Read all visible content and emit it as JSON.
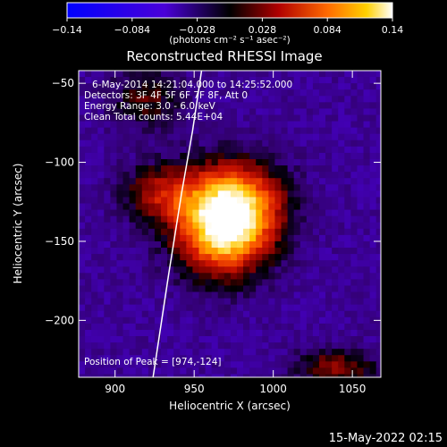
{
  "chart_data": {
    "type": "heatmap",
    "title": "Reconstructed RHESSI Image",
    "xlabel": "Heliocentric X (arcsec)",
    "ylabel": "Heliocentric Y (arcsec)",
    "xlim": [
      877,
      1068
    ],
    "ylim": [
      -236,
      -42
    ],
    "x_ticks": [
      900,
      950,
      1000,
      1050
    ],
    "y_ticks": [
      -50,
      -100,
      -150,
      -200
    ],
    "colorbar": {
      "range": [
        -0.14,
        0.14
      ],
      "ticks": [
        "-0.14",
        "-0.084",
        "-0.028",
        "0.028",
        "0.084",
        "0.14"
      ],
      "label": "(photons cm⁻² s⁻¹ asec⁻²)"
    },
    "info_lines": [
      "6-May-2014 14:21:04.000 to 14:25:52.000",
      "Detectors: 3F 4F 5F 6F 7F 8F, Att 0",
      "Energy Range: 3.0 - 6.0 keV",
      "Clean     Total counts: 5.44E+04"
    ],
    "peak_label": "Position of Peak = [974,-124]",
    "peak_position": [
      974,
      -124
    ],
    "sources": [
      {
        "x": 975,
        "y": -126,
        "sx": 30,
        "sy": 26,
        "amp": 0.14
      },
      {
        "x": 968,
        "y": -148,
        "sx": 28,
        "sy": 26,
        "amp": 0.12
      },
      {
        "x": 930,
        "y": -120,
        "sx": 24,
        "sy": 18,
        "amp": 0.07
      },
      {
        "x": 920,
        "y": -60,
        "sx": 22,
        "sy": 20,
        "amp": 0.045
      },
      {
        "x": 1040,
        "y": -230,
        "sx": 25,
        "sy": 12,
        "amp": 0.06
      }
    ],
    "limb_curve": {
      "x": [
        955,
        949,
        942,
        934,
        924
      ],
      "y": [
        -40,
        -80,
        -120,
        -170,
        -236
      ]
    },
    "footer_date": "15-May-2022 02:15"
  }
}
